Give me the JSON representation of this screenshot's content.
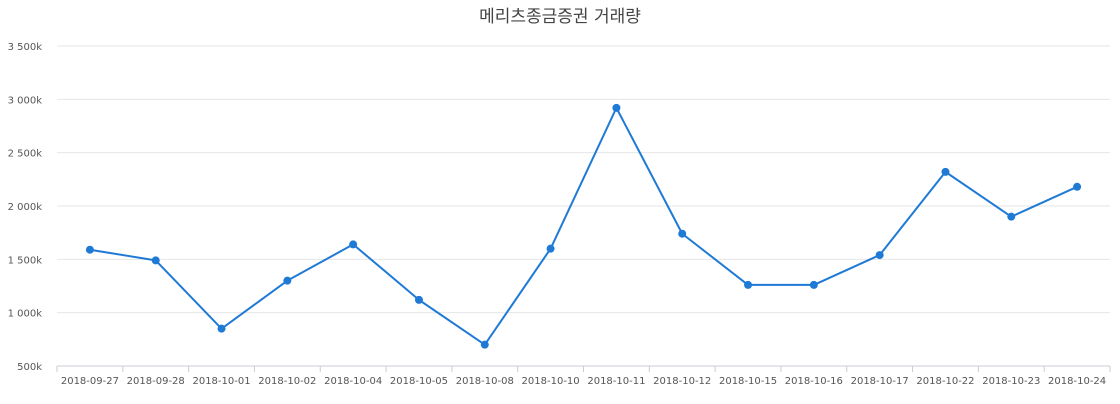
{
  "chart_data": {
    "type": "line",
    "title": "메리츠종금증권 거래량",
    "xlabel": "",
    "ylabel": "",
    "categories": [
      "2018-09-27",
      "2018-09-28",
      "2018-10-01",
      "2018-10-02",
      "2018-10-04",
      "2018-10-05",
      "2018-10-08",
      "2018-10-10",
      "2018-10-11",
      "2018-10-12",
      "2018-10-15",
      "2018-10-16",
      "2018-10-17",
      "2018-10-22",
      "2018-10-23",
      "2018-10-24"
    ],
    "series": [
      {
        "values": [
          1590000,
          1490000,
          850000,
          1300000,
          1640000,
          1120000,
          700000,
          1600000,
          2920000,
          1740000,
          1260000,
          1260000,
          1540000,
          2320000,
          1900000,
          2180000
        ]
      }
    ],
    "ylim": [
      500000,
      3500000
    ],
    "yticks": [
      500000,
      1000000,
      1500000,
      2000000,
      2500000,
      3000000,
      3500000
    ],
    "ytick_labels": [
      "500k",
      "1 000k",
      "1 500k",
      "2 000k",
      "2 500k",
      "3 000k",
      "3 500k"
    ],
    "grid": true,
    "legend": "none",
    "colors": {
      "series": "#1f7ad6",
      "grid": "#e6e6e6",
      "axis": "#c8ced6"
    }
  }
}
